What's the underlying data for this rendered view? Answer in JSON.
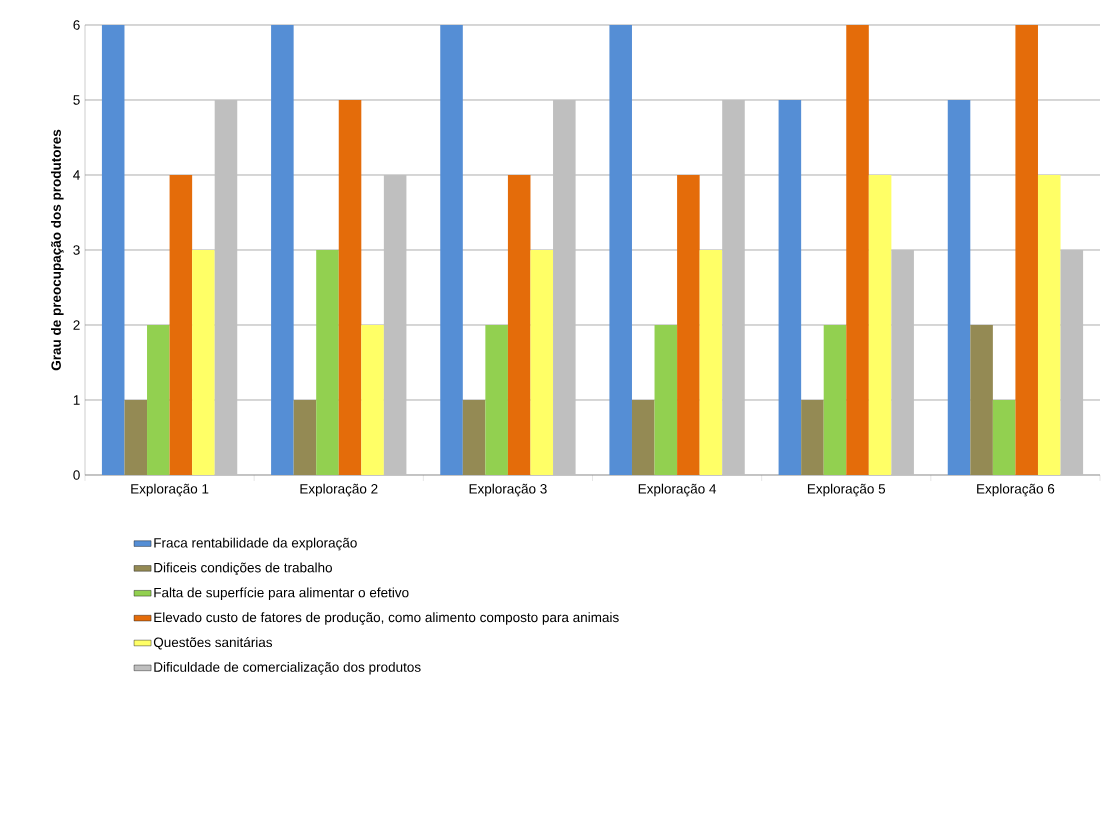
{
  "chart_data": {
    "type": "bar",
    "ylabel": "Grau de preocupação dos produtores",
    "categories": [
      "Exploração 1",
      "Exploração 2",
      "Exploração 3",
      "Exploração 4",
      "Exploração 5",
      "Exploração 6"
    ],
    "series": [
      {
        "name": "Fraca rentabilidade da exploração",
        "color": "#558ed5",
        "values": [
          6,
          6,
          6,
          6,
          5,
          5
        ]
      },
      {
        "name": "Dificeis condições de trabalho",
        "color": "#948a54",
        "values": [
          1,
          1,
          1,
          1,
          1,
          2
        ]
      },
      {
        "name": "Falta de superfície para alimentar o efetivo",
        "color": "#92d050",
        "values": [
          2,
          3,
          2,
          2,
          2,
          1
        ]
      },
      {
        "name": "Elevado custo de fatores de produção, como alimento composto para animais",
        "color": "#e46c0a",
        "values": [
          4,
          5,
          4,
          4,
          6,
          6
        ]
      },
      {
        "name": "Questões sanitárias",
        "color": "#ffff66",
        "values": [
          3,
          2,
          3,
          3,
          4,
          4
        ]
      },
      {
        "name": "Dificuldade de comercialização dos produtos",
        "color": "#bfbfbf",
        "values": [
          5,
          4,
          5,
          5,
          3,
          3
        ]
      }
    ],
    "ylim": [
      0,
      6
    ],
    "yticks": [
      0,
      1,
      2,
      3,
      4,
      5,
      6
    ],
    "grid": "y",
    "legend": "bottom"
  }
}
